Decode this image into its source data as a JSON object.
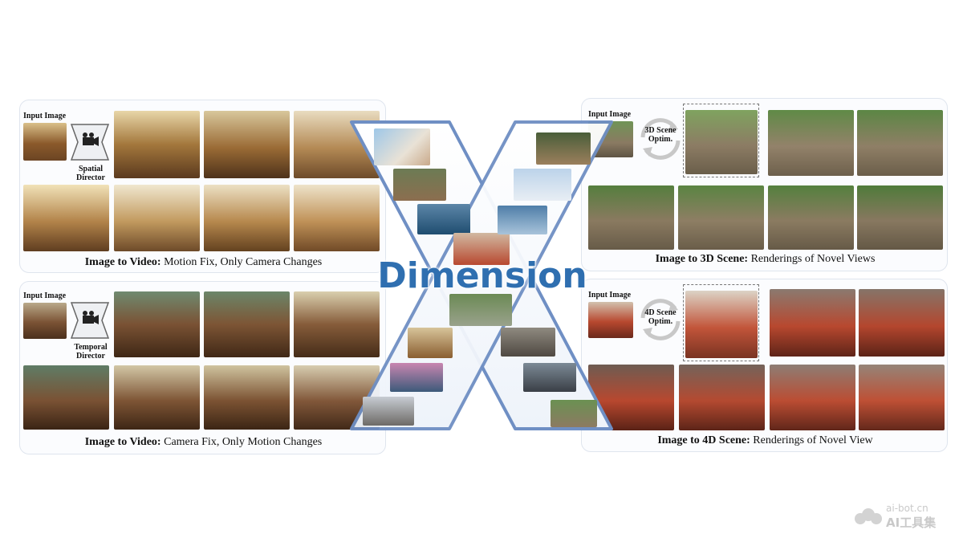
{
  "center": {
    "title": "Dimension"
  },
  "panel_i2v_spatial": {
    "input_label": "Input Image",
    "director_label": "Spatial Director",
    "caption_bold": "Image to Video:",
    "caption_rest": " Motion Fix, Only Camera Changes"
  },
  "panel_i2v_temporal": {
    "input_label": "Input Image",
    "director_label": "Temporal Director",
    "caption_bold": "Image to Video:",
    "caption_rest": " Camera Fix, Only Motion Changes"
  },
  "panel_3d": {
    "input_label": "Input Image",
    "optim_label": "3D Scene Optim.",
    "caption_bold": "Image to 3D Scene:",
    "caption_rest": " Renderings of  Novel Views"
  },
  "panel_4d": {
    "input_label": "Input Image",
    "optim_label": "4D Scene Optim.",
    "caption_bold": "Image to 4D Scene:",
    "caption_rest": " Renderings of  Novel View"
  },
  "watermark": {
    "line1": "ai-bot.cn",
    "line2": "AI工具集"
  },
  "colors": {
    "x_blue": "#6f8fc4",
    "title_blue": "#2f6fb0",
    "panel_border": "#dfe5ee",
    "office": "#b08a4a",
    "bear": "#7a5234",
    "garden": "#5f8a46",
    "devil": "#b8482f"
  }
}
